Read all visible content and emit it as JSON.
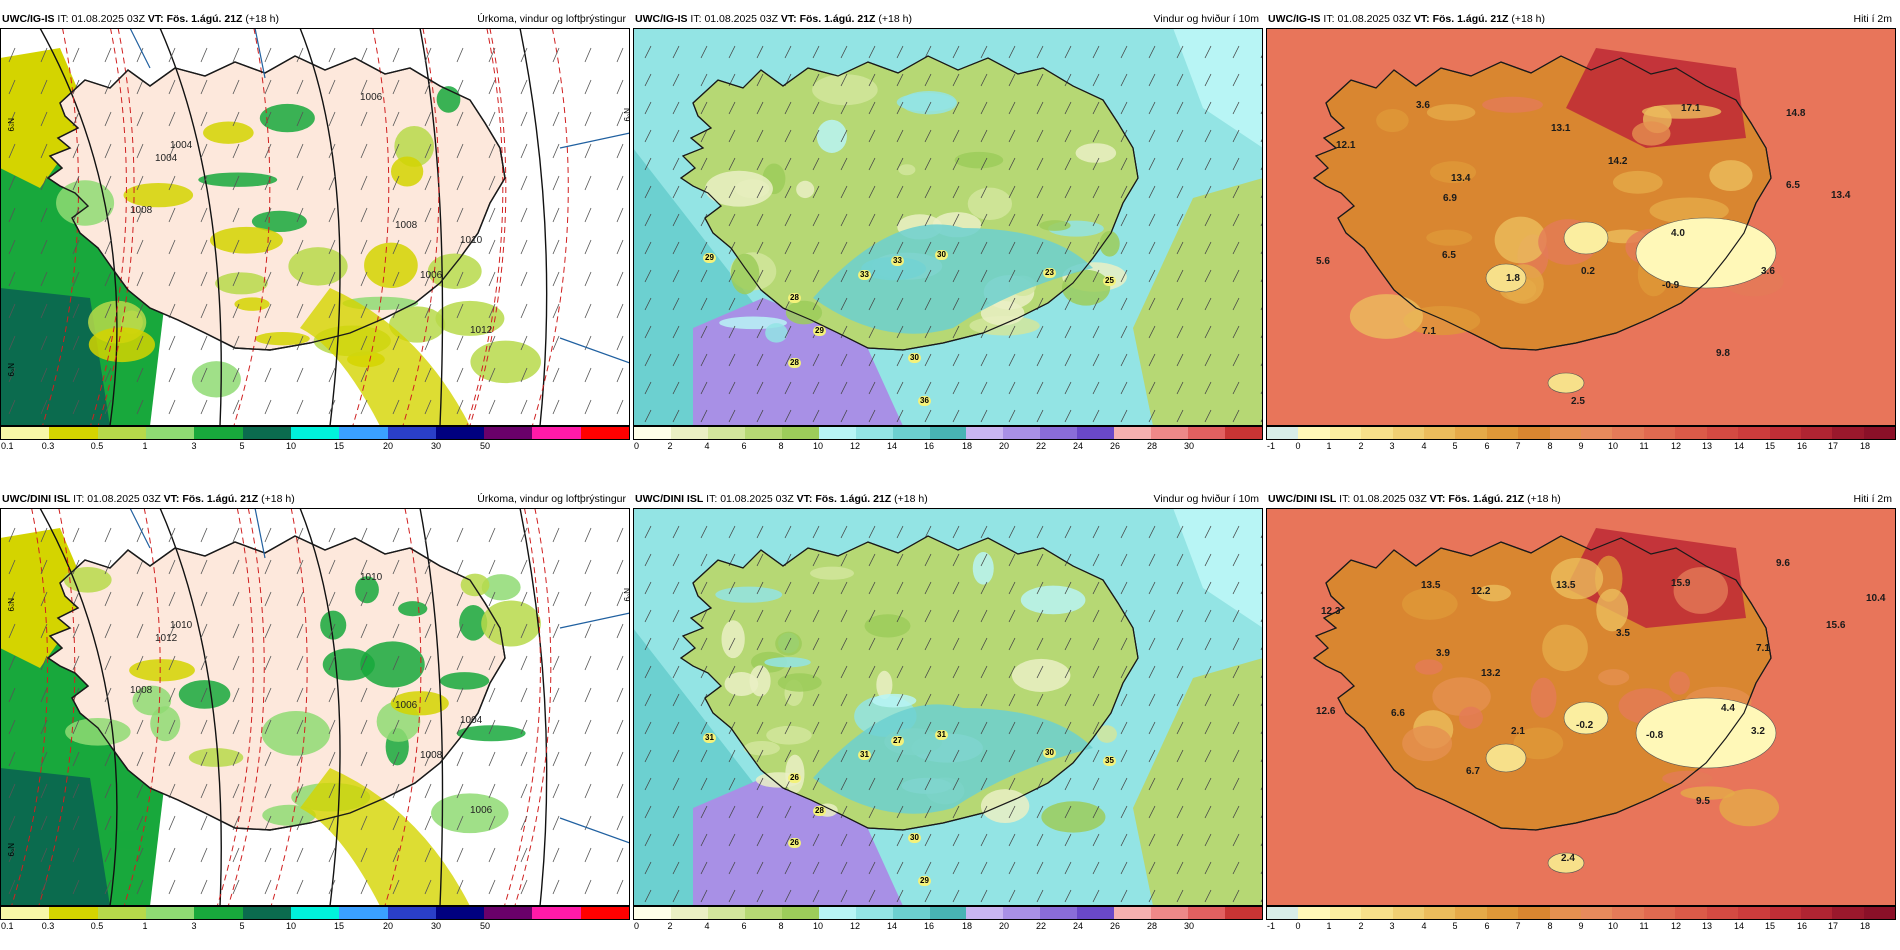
{
  "rows": [
    {
      "model": "UWC/IG-IS",
      "panels": [
        {
          "type": "precip",
          "title": "Úrkoma, vindur og loftþrýstingur",
          "isobar_labels": [
            "1006",
            "1004",
            "1008",
            "1008",
            "1010",
            "1012",
            "1006",
            "1004"
          ],
          "side_labels": [
            "N°9",
            "N°9",
            "N°9"
          ]
        },
        {
          "type": "wind",
          "title": "Vindur og hviður í 10m",
          "gust_labels": [
            "29",
            "33",
            "33",
            "30",
            "28",
            "29",
            "28",
            "30",
            "36",
            "23",
            "25"
          ]
        },
        {
          "type": "temp",
          "title": "Hiti í 2m",
          "temp_labels": [
            "3.6",
            "12.1",
            "13.1",
            "17.1",
            "14.8",
            "13.4",
            "14.2",
            "6.5",
            "13.4",
            "6.9",
            "4.0",
            "5.6",
            "6.5",
            "1.8",
            "0.2",
            "-0.9",
            "3.6",
            "7.1",
            "9.8",
            "2.5"
          ]
        }
      ]
    },
    {
      "model": "UWC/DINI ISL",
      "panels": [
        {
          "type": "precip",
          "title": "Úrkoma, vindur og loftþrýstingur",
          "isobar_labels": [
            "1010",
            "1012",
            "1008",
            "1006",
            "1004",
            "1006",
            "1008",
            "1010"
          ],
          "side_labels": [
            "N°9",
            "N°9",
            "N°9"
          ]
        },
        {
          "type": "wind",
          "title": "Vindur og hviður í 10m",
          "gust_labels": [
            "31",
            "31",
            "27",
            "31",
            "26",
            "28",
            "26",
            "30",
            "29",
            "30",
            "35"
          ]
        },
        {
          "type": "temp",
          "title": "Hiti í 2m",
          "temp_labels": [
            "13.5",
            "12.2",
            "13.5",
            "15.9",
            "9.6",
            "12.3",
            "10.4",
            "3.5",
            "15.6",
            "3.9",
            "7.1",
            "13.2",
            "4.4",
            "12.6",
            "6.6",
            "2.1",
            "-0.2",
            "-0.8",
            "3.2",
            "6.7",
            "9.5",
            "2.4"
          ]
        }
      ]
    }
  ],
  "header": {
    "it_label": "IT:",
    "it_value": "01.08.2025 03Z",
    "vt_label": "VT:",
    "vt_value": "Fös. 1.ágú. 21Z",
    "lead": "(+18 h)"
  },
  "colorbars": {
    "precip": {
      "ticks": [
        "0.1",
        "0.3",
        "0.5",
        "1",
        "3",
        "5",
        "10",
        "15",
        "20",
        "30",
        "50"
      ],
      "colors": [
        "#f7f7a6",
        "#d4d400",
        "#b7d94a",
        "#8fdb73",
        "#18a83c",
        "#0b6b4e",
        "#00f2dc",
        "#3aa0ff",
        "#2a3fc8",
        "#000080",
        "#6a006a",
        "#ff1aa8",
        "#ff0000"
      ]
    },
    "wind": {
      "ticks": [
        "0",
        "2",
        "4",
        "6",
        "8",
        "10",
        "12",
        "14",
        "16",
        "18",
        "20",
        "22",
        "24",
        "26",
        "28",
        "30"
      ],
      "colors": [
        "#fefee8",
        "#eaf0c4",
        "#d2e69c",
        "#b6d874",
        "#9ccc5a",
        "#b8f5f5",
        "#93e4e4",
        "#6cd0d0",
        "#48b4b4",
        "#c9b6f2",
        "#a890e6",
        "#8a6cd8",
        "#6a48c8",
        "#f6b0b0",
        "#ee8888",
        "#e26060",
        "#c83434"
      ]
    },
    "temp": {
      "ticks": [
        "-1",
        "0",
        "1",
        "2",
        "3",
        "4",
        "5",
        "6",
        "7",
        "8",
        "9",
        "10",
        "11",
        "12",
        "13",
        "14",
        "15",
        "16",
        "17",
        "18"
      ],
      "colors": [
        "#d8eee8",
        "#fff8b8",
        "#fbeea0",
        "#f7e08a",
        "#f0cf72",
        "#ebbd5c",
        "#e5aa48",
        "#df9838",
        "#d98630",
        "#e59050",
        "#e78a5c",
        "#e47a58",
        "#e06a50",
        "#db5a48",
        "#d44a42",
        "#cc3c3c",
        "#c02e36",
        "#b02432",
        "#9a182c",
        "#8a1028"
      ]
    }
  },
  "colors": {
    "land_precip": "#fde8dc",
    "sea_wind": "#b8f5f5",
    "sea_temp": "#e8755a",
    "coast": "#1a1a1a"
  }
}
